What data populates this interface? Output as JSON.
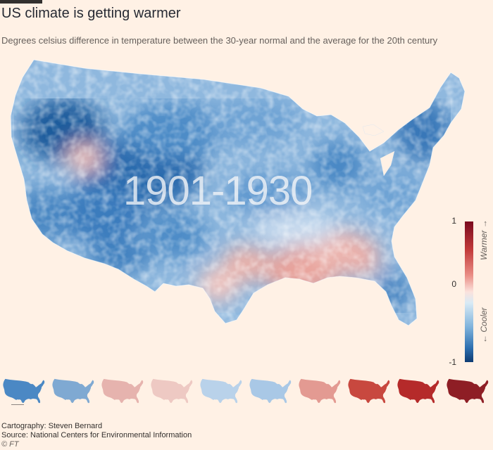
{
  "header": {
    "title": "US climate is getting warmer",
    "subtitle": "Degrees celsius difference in temperature between the 30-year normal and the average for the 20th century"
  },
  "map": {
    "period_label": "1901-1930"
  },
  "legend": {
    "max_label": "1",
    "zero_label": "0",
    "min_label": "-1",
    "warmer_label": "Warmer →",
    "cooler_label": "← Cooler",
    "warm_color": "#b2182b",
    "cool_color": "#2166ac"
  },
  "thumbnails": {
    "count": 10,
    "selected_index": 0,
    "tints": [
      "#4b88c4",
      "#7fa9d2",
      "#e6b3ae",
      "#eec9c3",
      "#b9d2ea",
      "#a9c8e6",
      "#e39a92",
      "#c8483f",
      "#b52a2a",
      "#8e1e25"
    ]
  },
  "footer": {
    "credit": "Cartography: Steven Bernard",
    "source": "Source: National Centers for Environmental Information",
    "copyright": "© FT"
  }
}
